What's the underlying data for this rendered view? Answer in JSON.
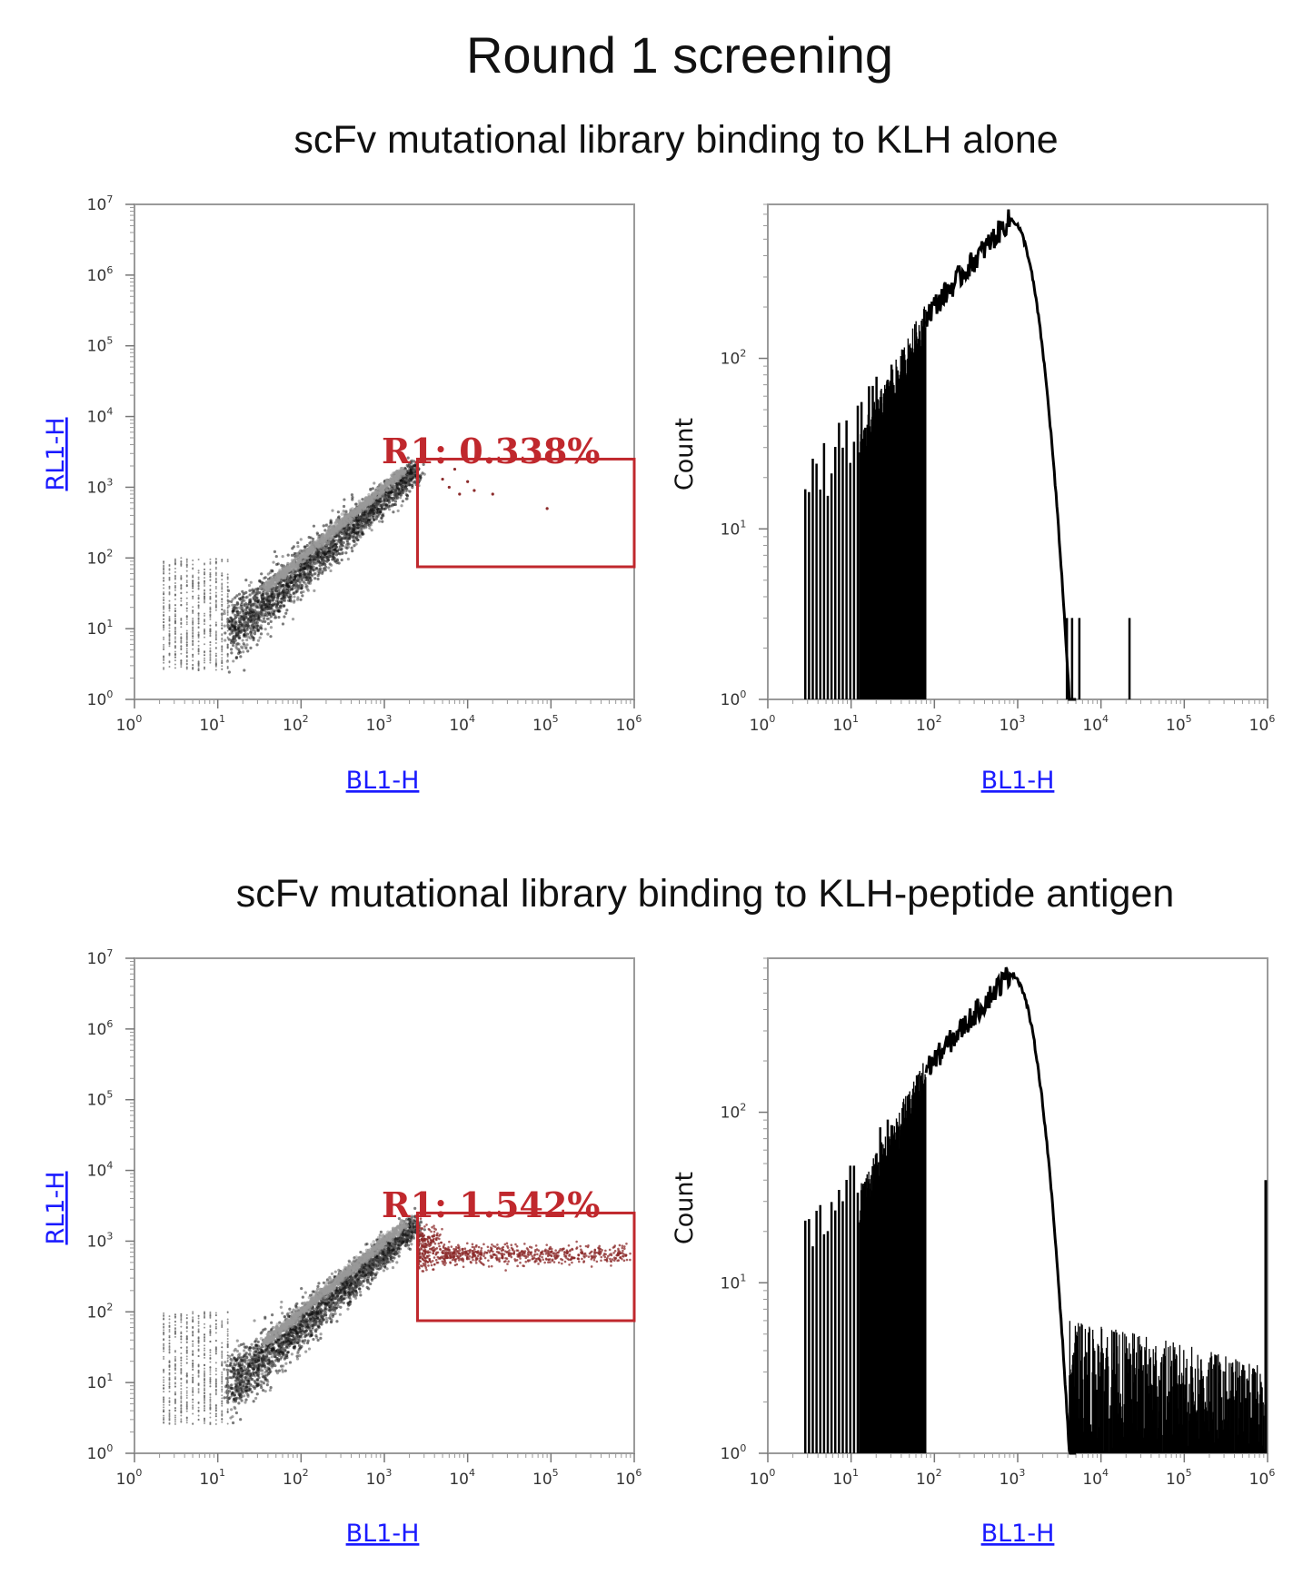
{
  "figure": {
    "title": "Round 1 screening",
    "accent_color": "#c0282d",
    "axis_label_color": "#1a1aff"
  },
  "chart_data": [
    {
      "id": "top-scatter",
      "type": "scatter",
      "title": "scFv mutational library binding to KLH alone",
      "xlabel": "BL1-H",
      "ylabel": "RL1-H",
      "xscale": "log",
      "yscale": "log",
      "xlim": [
        1,
        1000000
      ],
      "ylim": [
        1,
        10000000
      ],
      "x_ticks": [
        "10",
        "10",
        "10",
        "10",
        "10",
        "10",
        "10"
      ],
      "x_tick_exps": [
        "0",
        "1",
        "2",
        "3",
        "4",
        "5",
        "6"
      ],
      "y_ticks": [
        "10",
        "10",
        "10",
        "10",
        "10",
        "10",
        "10",
        "10"
      ],
      "y_tick_exps": [
        "0",
        "1",
        "2",
        "3",
        "4",
        "5",
        "6",
        "7"
      ],
      "gate": {
        "name": "R1",
        "label": "R1: 0.338%",
        "percent": 0.338,
        "x_range": [
          2500,
          1000000
        ],
        "y_range": [
          75,
          2500
        ]
      },
      "gate_events": [
        [
          5000,
          1300
        ],
        [
          6000,
          1000
        ],
        [
          8000,
          800
        ],
        [
          12000,
          900
        ],
        [
          20000,
          800
        ],
        [
          90000,
          500
        ],
        [
          7000,
          1800
        ],
        [
          10000,
          1200
        ]
      ]
    },
    {
      "id": "top-histogram",
      "type": "area",
      "xlabel": "BL1-H",
      "ylabel": "Count",
      "xscale": "log",
      "yscale": "log",
      "xlim": [
        1,
        1000000
      ],
      "ylim": [
        1,
        800
      ],
      "x_ticks": [
        "10",
        "10",
        "10",
        "10",
        "10",
        "10",
        "10"
      ],
      "x_tick_exps": [
        "0",
        "1",
        "2",
        "3",
        "4",
        "5",
        "6"
      ],
      "y_ticks": [
        "10",
        "10",
        "10"
      ],
      "y_tick_exps": [
        "0",
        "1",
        "2"
      ],
      "peak": {
        "x": 800,
        "y": 650
      },
      "outlier_spikes": [
        [
          3900,
          3
        ],
        [
          4500,
          3
        ],
        [
          5500,
          3
        ],
        [
          22000,
          3
        ]
      ]
    },
    {
      "id": "bottom-scatter",
      "type": "scatter",
      "title": "scFv mutational library binding to KLH-peptide antigen",
      "xlabel": "BL1-H",
      "ylabel": "RL1-H",
      "xscale": "log",
      "yscale": "log",
      "xlim": [
        1,
        1000000
      ],
      "ylim": [
        1,
        10000000
      ],
      "x_ticks": [
        "10",
        "10",
        "10",
        "10",
        "10",
        "10",
        "10"
      ],
      "x_tick_exps": [
        "0",
        "1",
        "2",
        "3",
        "4",
        "5",
        "6"
      ],
      "y_ticks": [
        "10",
        "10",
        "10",
        "10",
        "10",
        "10",
        "10",
        "10"
      ],
      "y_tick_exps": [
        "0",
        "1",
        "2",
        "3",
        "4",
        "5",
        "6",
        "7"
      ],
      "gate": {
        "name": "R1",
        "label": "R1: 1.542%",
        "percent": 1.542,
        "x_range": [
          2500,
          1000000
        ],
        "y_range": [
          75,
          2500
        ]
      },
      "gate_population": {
        "x_range": [
          2500,
          900000
        ],
        "y_center": 650
      }
    },
    {
      "id": "bottom-histogram",
      "type": "area",
      "xlabel": "BL1-H",
      "ylabel": "Count",
      "xscale": "log",
      "yscale": "log",
      "xlim": [
        1,
        1000000
      ],
      "ylim": [
        1,
        800
      ],
      "x_ticks": [
        "10",
        "10",
        "10",
        "10",
        "10",
        "10",
        "10"
      ],
      "x_tick_exps": [
        "0",
        "1",
        "2",
        "3",
        "4",
        "5",
        "6"
      ],
      "y_ticks": [
        "10",
        "10",
        "10"
      ],
      "y_tick_exps": [
        "0",
        "1",
        "2"
      ],
      "peak": {
        "x": 800,
        "y": 650
      },
      "tail_level": [
        2,
        5
      ],
      "last_bin": {
        "x": 1000000,
        "y": 40
      }
    }
  ]
}
